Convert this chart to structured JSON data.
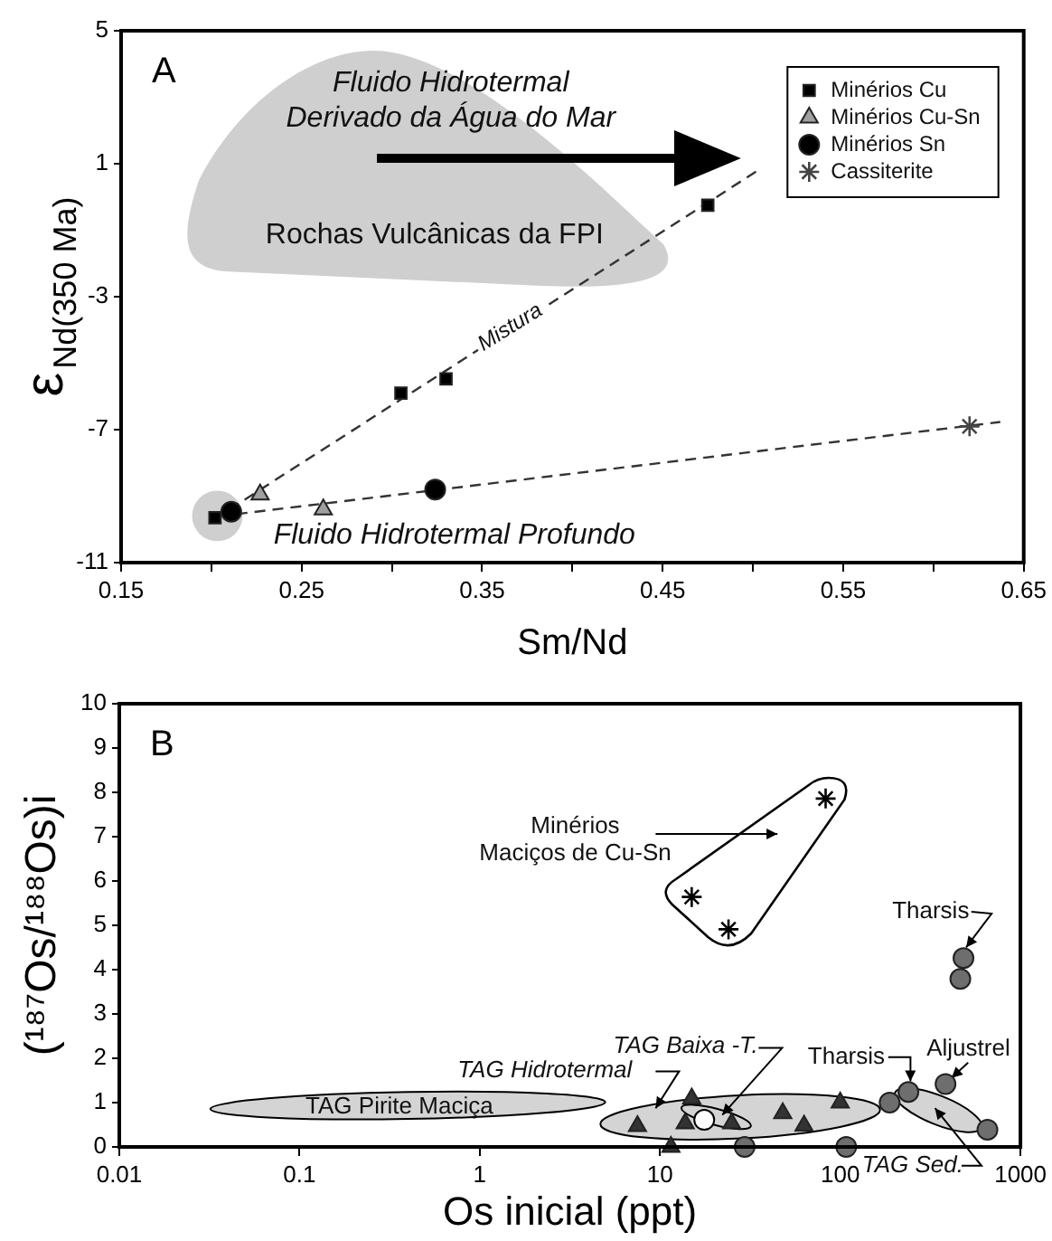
{
  "chart_data": [
    {
      "type": "scatter",
      "title": "A",
      "xlabel": "Sm/Nd",
      "ylabel": "ε$_{Nd(350 Ma)}$",
      "xlim": [
        0.15,
        0.65
      ],
      "ylim": [
        -11,
        5
      ],
      "xticks": [
        0.15,
        {
          "value": 0.2,
          "label": null
        },
        0.25,
        {
          "value": 0.3,
          "label": null
        },
        0.35,
        {
          "value": 0.4,
          "label": null
        },
        0.45,
        {
          "value": 0.5,
          "label": null
        },
        0.55,
        {
          "value": 0.6,
          "label": null
        },
        0.65
      ],
      "yticks": [
        -11,
        -7,
        -3,
        1,
        5
      ],
      "legend": "top right",
      "series": [
        {
          "name": "Minérios Cu",
          "color": "#000000",
          "marker": "square",
          "x": [
            0.202,
            0.305,
            0.33,
            0.475
          ],
          "values": [
            -9.65,
            -5.9,
            -5.47,
            -0.25
          ]
        },
        {
          "name": "Minérios Cu-Sn",
          "color": "#a0a0a0",
          "marker": "triangle",
          "x": [
            0.227,
            0.262
          ],
          "values": [
            -8.95,
            -9.4
          ]
        },
        {
          "name": "Minérios Sn",
          "color": "#000000",
          "marker": "circle",
          "x": [
            0.211,
            0.324
          ],
          "values": [
            -9.47,
            -8.8
          ]
        },
        {
          "name": "Cassiterite",
          "color": "#444444",
          "marker": "cross",
          "x": [
            0.62
          ],
          "values": [
            -6.9
          ]
        },
        {
          "type": "line",
          "color": "#333333",
          "marker": "none",
          "line_style": "dashed",
          "x": [
            0.21,
            0.504
          ],
          "values": [
            -9.4,
            0.84
          ]
        },
        {
          "type": "line",
          "color": "#333333",
          "marker": "none",
          "line_style": "dashed",
          "x": [
            0.214,
            0.637
          ],
          "values": [
            -9.54,
            -6.77
          ]
        }
      ],
      "annotations": [
        "Fluido Hidrotermal",
        "Derivado da Água do Mar",
        "Rochas Vulcânicas da FPI",
        "Mistura",
        "Fluido Hidrotermal Profundo"
      ]
    },
    {
      "type": "scatter",
      "title": "B",
      "xlabel": "Os inicial (ppt)",
      "ylabel": "(¹⁸⁷Os/¹⁸⁸Os)i",
      "log": "x",
      "xlim": [
        0.01,
        1000
      ],
      "ylim": [
        0,
        10
      ],
      "xticks": [
        0.01,
        0.1,
        1,
        10,
        100,
        1000
      ],
      "yticks": [
        0,
        1,
        2,
        3,
        4,
        5,
        6,
        7,
        8,
        9,
        10
      ],
      "series": [
        {
          "color": "#000000",
          "marker": "cross",
          "x": [
            15,
            24,
            83
          ],
          "values": [
            5.64,
            4.91,
            7.86
          ]
        },
        {
          "color": "#333333",
          "marker": "triangle",
          "x": [
            7.5,
            11.5,
            13.8,
            15,
            25,
            48,
            63,
            100
          ],
          "values": [
            0.47,
            0,
            0.53,
            1.09,
            0.53,
            0.76,
            0.48,
            1.0
          ]
        },
        {
          "color": "#ffffff",
          "marker": "circle",
          "x": [
            17.6
          ],
          "values": [
            0.61
          ]
        },
        {
          "color": "#6e6e6e",
          "marker": "circle",
          "x": [
            29.5,
            108,
            188,
            239,
            384,
            656,
            464,
            483
          ],
          "values": [
            0,
            0,
            1.0,
            1.24,
            1.42,
            0.39,
            3.79,
            4.26
          ]
        }
      ],
      "annotations": [
        "Minérios",
        "Maciços de Cu-Sn",
        "Tharsis",
        "Tharsis",
        "Aljustrel",
        "TAG Hidrotermal",
        "TAG Baixa -T.",
        "TAG Pirite Maciça",
        "TAG Sed."
      ]
    }
  ]
}
